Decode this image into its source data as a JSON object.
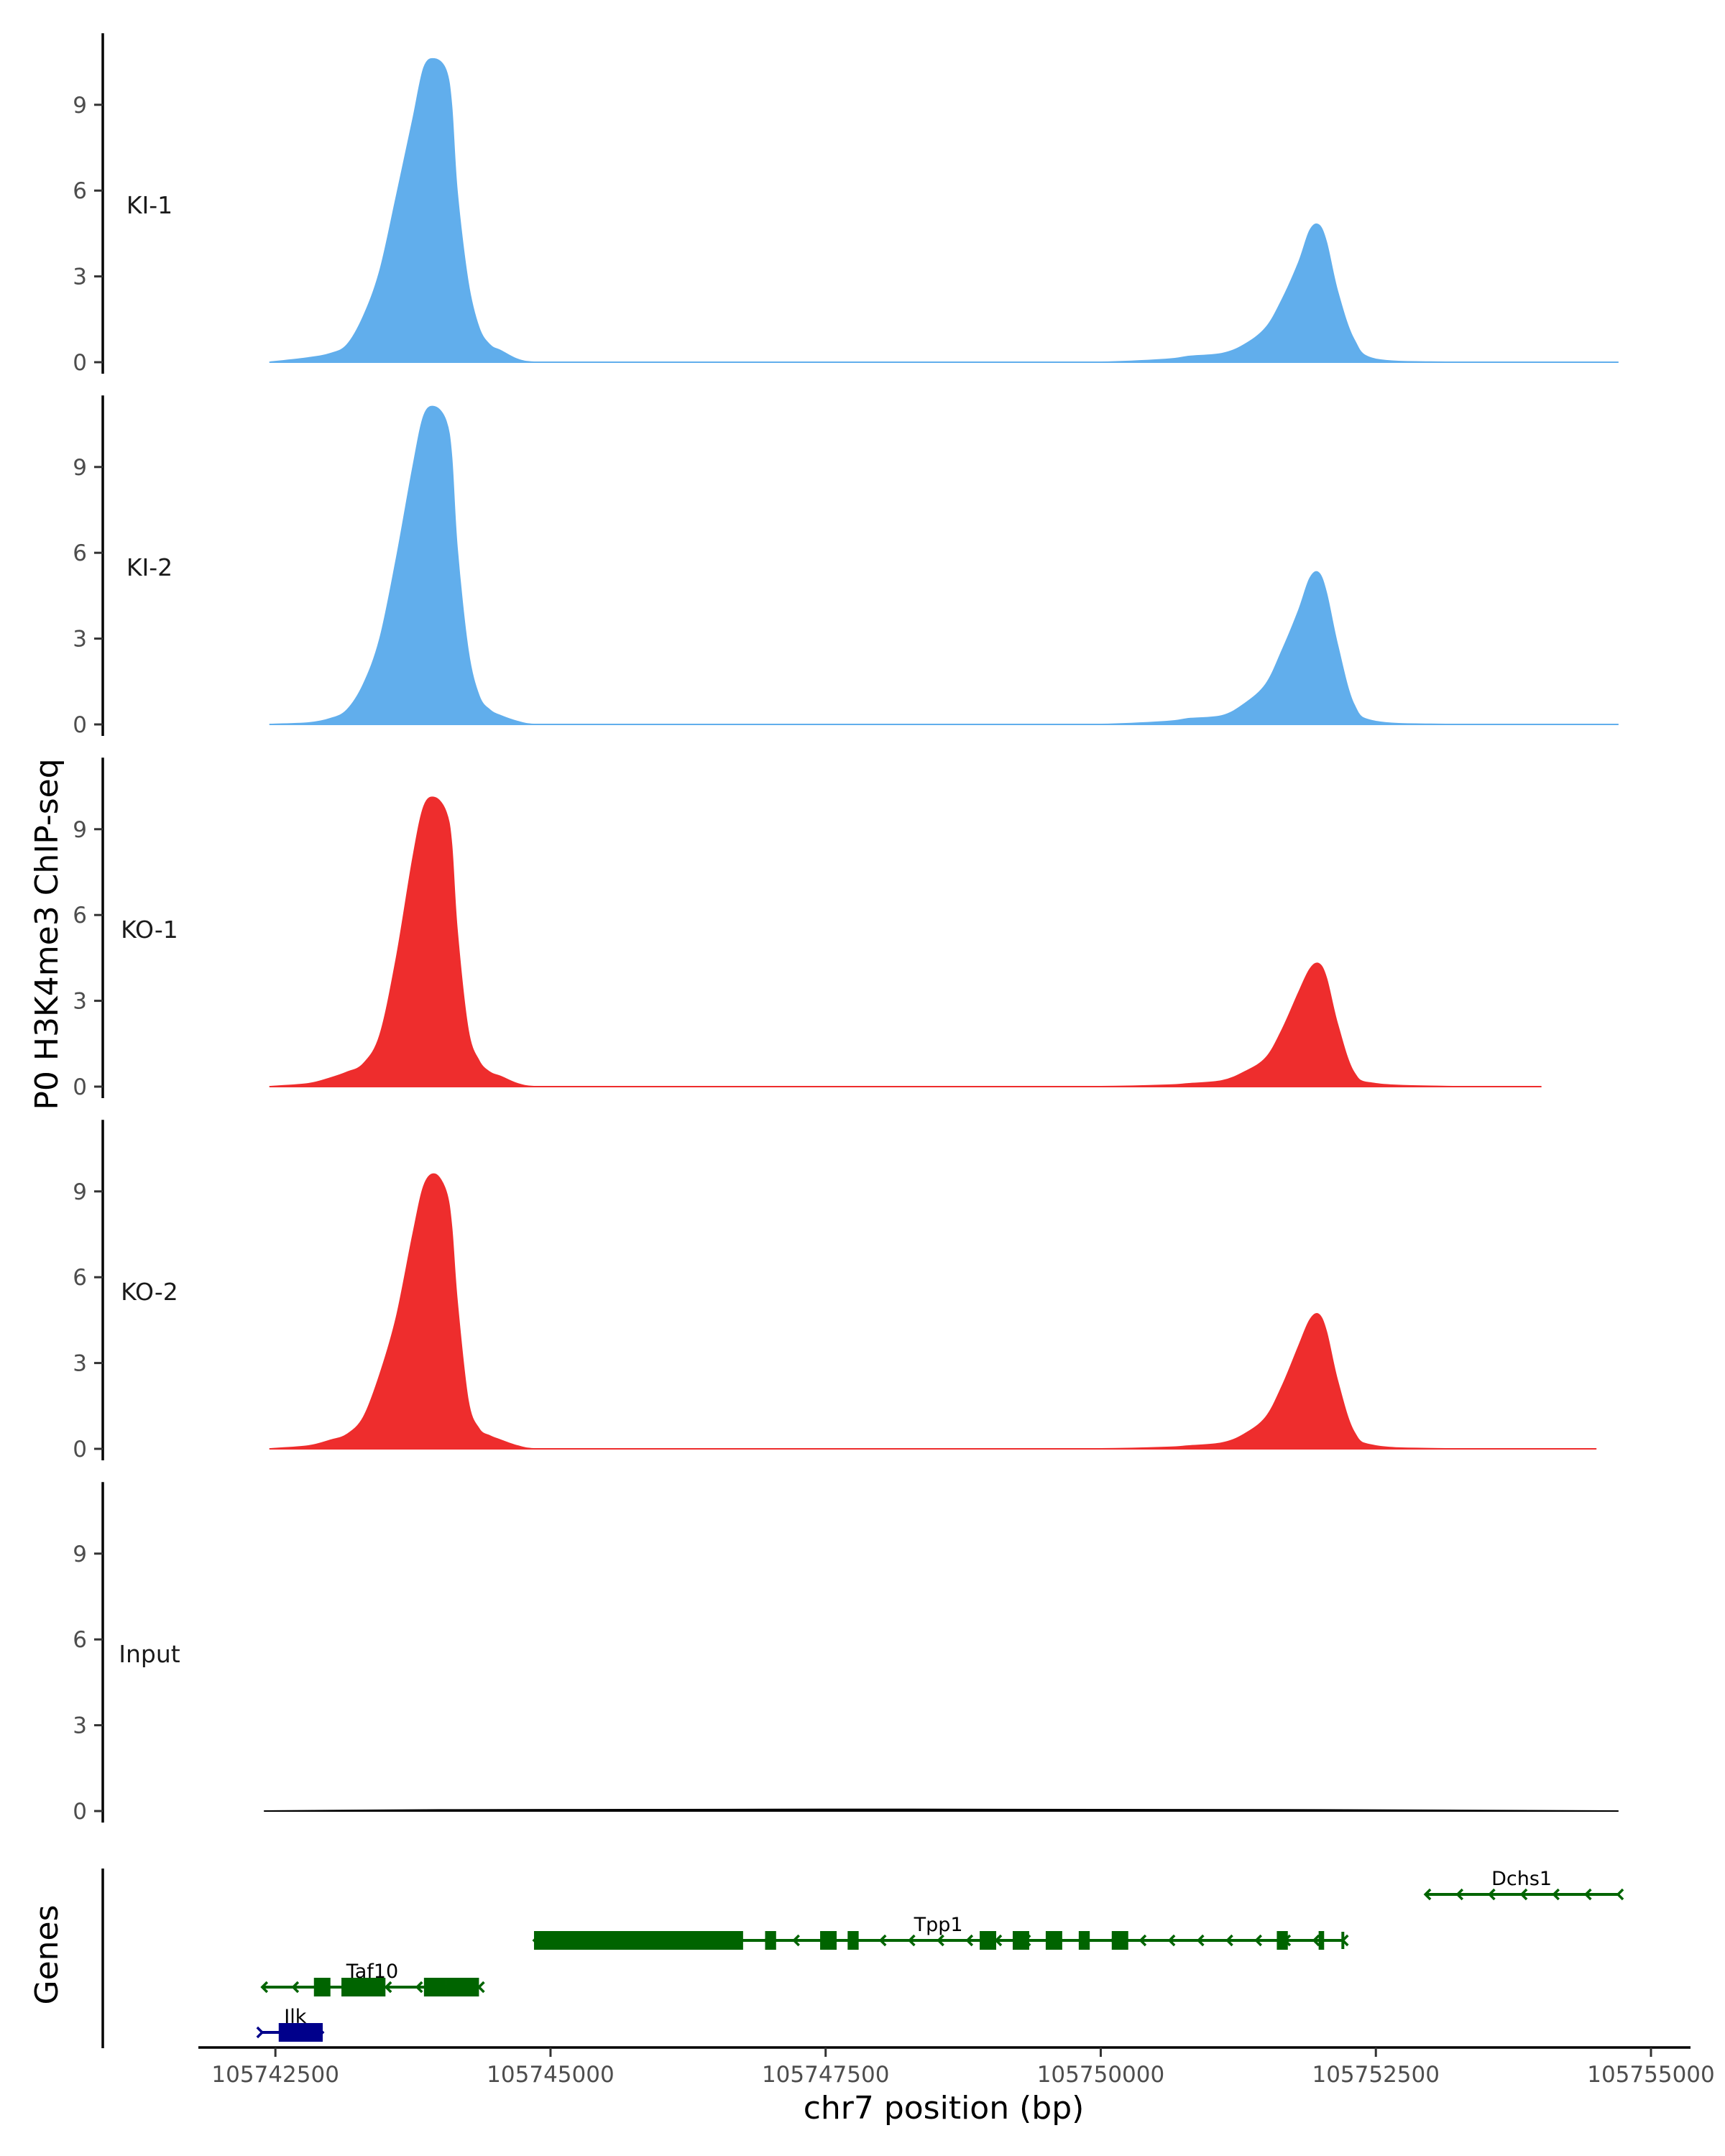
{
  "chart_data": {
    "type": "area",
    "ylabel": "P0 H3K4me3 ChIP-seq",
    "xlabel": "chr7 position (bp)",
    "ylim": [
      0,
      11.5
    ],
    "yticks": [
      "0",
      "3",
      "6",
      "9"
    ],
    "xlim": [
      105741800,
      105755000
    ],
    "xticks": [
      {
        "value": 105742500,
        "label": "105742500"
      },
      {
        "value": 105745000,
        "label": "105745000"
      },
      {
        "value": 105747500,
        "label": "105747500"
      },
      {
        "value": 105750000,
        "label": "105750000"
      },
      {
        "value": 105752500,
        "label": "105752500"
      },
      {
        "value": 105755000,
        "label": "105755000"
      }
    ],
    "grid": false,
    "tracks": [
      {
        "name": "KI-1",
        "color": "#61AEEC",
        "x": [
          105742450,
          105742800,
          105743000,
          105743150,
          105743300,
          105743450,
          105743600,
          105743750,
          105743850,
          105743950,
          105744050,
          105744100,
          105744150,
          105744250,
          105744350,
          105744450,
          105744550,
          105744700,
          105744850,
          105745200,
          105746000,
          105747000,
          105748000,
          105749000,
          105750000,
          105750600,
          105750800,
          105751100,
          105751300,
          105751500,
          105751650,
          105751800,
          105751900,
          105751980,
          105752050,
          105752150,
          105752300,
          105752500,
          105753200,
          105754700
        ],
        "y": [
          0,
          0.15,
          0.3,
          0.6,
          1.6,
          3.2,
          5.8,
          8.5,
          10.3,
          10.6,
          10.2,
          9.0,
          6.0,
          2.8,
          1.2,
          0.6,
          0.4,
          0.1,
          0,
          0,
          0,
          0,
          0,
          0,
          0,
          0.1,
          0.2,
          0.3,
          0.6,
          1.2,
          2.2,
          3.5,
          4.6,
          4.8,
          4.2,
          2.5,
          0.8,
          0.1,
          0,
          0
        ]
      },
      {
        "name": "KI-2",
        "color": "#61AEEC",
        "x": [
          105742450,
          105742800,
          105743000,
          105743150,
          105743300,
          105743450,
          105743600,
          105743750,
          105743850,
          105743950,
          105744050,
          105744100,
          105744150,
          105744250,
          105744350,
          105744450,
          105744550,
          105744700,
          105744850,
          105745200,
          105746000,
          105747000,
          105748000,
          105749000,
          105750000,
          105750600,
          105750800,
          105751100,
          105751300,
          105751500,
          105751650,
          105751800,
          105751900,
          105751980,
          105752050,
          105752150,
          105752300,
          105752500,
          105753200,
          105754700
        ],
        "y": [
          0,
          0.05,
          0.2,
          0.5,
          1.4,
          3.0,
          5.8,
          9.0,
          10.8,
          11.1,
          10.6,
          9.4,
          6.2,
          2.6,
          1.0,
          0.5,
          0.3,
          0.1,
          0,
          0,
          0,
          0,
          0,
          0,
          0,
          0.1,
          0.2,
          0.3,
          0.7,
          1.4,
          2.6,
          4.0,
          5.1,
          5.3,
          4.6,
          2.8,
          0.7,
          0.1,
          0,
          0
        ]
      },
      {
        "name": "KO-1",
        "color": "#EE2D2D",
        "x": [
          105742450,
          105742800,
          105743000,
          105743150,
          105743300,
          105743450,
          105743600,
          105743750,
          105743850,
          105743950,
          105744050,
          105744100,
          105744150,
          105744250,
          105744350,
          105744450,
          105744550,
          105744700,
          105744850,
          105745200,
          105746000,
          105747000,
          105748000,
          105749000,
          105750000,
          105750600,
          105750800,
          105751100,
          105751300,
          105751500,
          105751650,
          105751800,
          105751900,
          105751980,
          105752050,
          105752150,
          105752300,
          105752500,
          105753200,
          105754000
        ],
        "y": [
          0,
          0.1,
          0.3,
          0.5,
          0.8,
          1.8,
          4.5,
          8.0,
          9.8,
          10.1,
          9.6,
          8.5,
          5.5,
          2.0,
          0.9,
          0.5,
          0.35,
          0.1,
          0,
          0,
          0,
          0,
          0,
          0,
          0,
          0.05,
          0.1,
          0.2,
          0.5,
          1.0,
          2.0,
          3.3,
          4.1,
          4.3,
          3.8,
          2.2,
          0.5,
          0.1,
          0,
          0
        ]
      },
      {
        "name": "KO-2",
        "color": "#EE2D2D",
        "x": [
          105742450,
          105742800,
          105743000,
          105743150,
          105743300,
          105743450,
          105743600,
          105743750,
          105743850,
          105743950,
          105744050,
          105744100,
          105744150,
          105744250,
          105744350,
          105744450,
          105744550,
          105744700,
          105744850,
          105745200,
          105746000,
          105747000,
          105748000,
          105749000,
          105750000,
          105750600,
          105750800,
          105751100,
          105751300,
          105751500,
          105751650,
          105751800,
          105751900,
          105751980,
          105752050,
          105752150,
          105752300,
          105752500,
          105753200,
          105754500
        ],
        "y": [
          0,
          0.1,
          0.3,
          0.5,
          1.1,
          2.6,
          4.6,
          7.5,
          9.2,
          9.6,
          9.0,
          7.8,
          5.2,
          1.7,
          0.7,
          0.45,
          0.3,
          0.1,
          0,
          0,
          0,
          0,
          0,
          0,
          0,
          0.05,
          0.1,
          0.2,
          0.5,
          1.1,
          2.2,
          3.6,
          4.5,
          4.7,
          4.1,
          2.4,
          0.6,
          0.1,
          0,
          0
        ]
      },
      {
        "name": "Input",
        "color": "#000000",
        "x": [
          105742400,
          105744000,
          105746000,
          105748000,
          105750000,
          105752000,
          105754700
        ],
        "y": [
          0,
          0.04,
          0.05,
          0.06,
          0.05,
          0.04,
          0
        ]
      }
    ],
    "genes_track_label": "Genes",
    "genes": [
      {
        "name": "Dchs1",
        "row": 3,
        "start": 105752950,
        "end": 105754700,
        "strand": "-",
        "color": "#006400",
        "exons": []
      },
      {
        "name": "Tpp1",
        "row": 2,
        "start": 105744850,
        "end": 105752200,
        "strand": "-",
        "color": "#006400",
        "exons": [
          [
            105744850,
            105746750
          ],
          [
            105746950,
            105747050
          ],
          [
            105747450,
            105747600
          ],
          [
            105747700,
            105747800
          ],
          [
            105748900,
            105749050
          ],
          [
            105749200,
            105749350
          ],
          [
            105749500,
            105749650
          ],
          [
            105749800,
            105749900
          ],
          [
            105750100,
            105750250
          ],
          [
            105751600,
            105751700
          ],
          [
            105751980,
            105752030
          ]
        ]
      },
      {
        "name": "Taf10",
        "row": 1,
        "start": 105742380,
        "end": 105744350,
        "strand": "-",
        "color": "#006400",
        "exons": [
          [
            105742850,
            105743000
          ],
          [
            105743100,
            105743500
          ],
          [
            105743850,
            105744050
          ],
          [
            105744050,
            105744350
          ]
        ]
      },
      {
        "name": "Ilk",
        "row": 0,
        "start": 105742380,
        "end": 105742930,
        "strand": "+",
        "color": "#00008B",
        "exons": [
          [
            105742530,
            105742930
          ]
        ]
      }
    ]
  }
}
